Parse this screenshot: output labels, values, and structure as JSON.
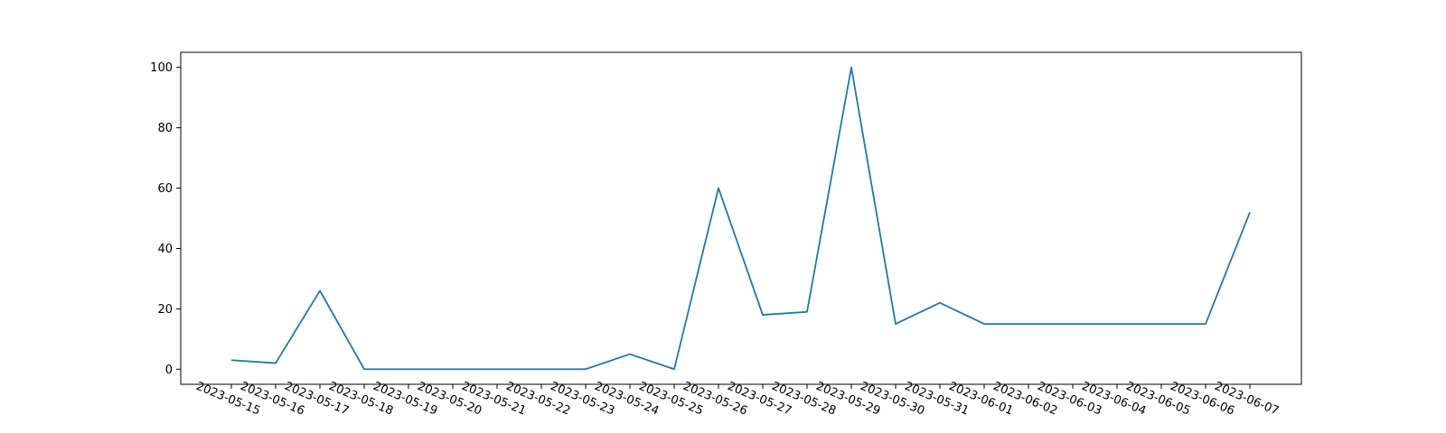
{
  "chart_data": {
    "type": "line",
    "title": "",
    "xlabel": "",
    "ylabel": "",
    "x": [
      "2023-05-15",
      "2023-05-16",
      "2023-05-17",
      "2023-05-18",
      "2023-05-19",
      "2023-05-20",
      "2023-05-21",
      "2023-05-22",
      "2023-05-23",
      "2023-05-24",
      "2023-05-25",
      "2023-05-26",
      "2023-05-27",
      "2023-05-28",
      "2023-05-29",
      "2023-05-30",
      "2023-05-31",
      "2023-06-01",
      "2023-06-02",
      "2023-06-03",
      "2023-06-04",
      "2023-06-05",
      "2023-06-06",
      "2023-06-07"
    ],
    "series": [
      {
        "values": [
          3,
          2,
          26,
          0,
          0,
          0,
          0,
          0,
          0,
          5,
          0,
          60,
          18,
          19,
          100,
          15,
          22,
          15,
          15,
          15,
          15,
          15,
          15,
          52
        ],
        "color": "#1f77b4"
      }
    ],
    "ylim": [
      -5,
      105
    ],
    "yticks": [
      0,
      20,
      40,
      60,
      80,
      100
    ],
    "grid": false,
    "legend": "none"
  }
}
